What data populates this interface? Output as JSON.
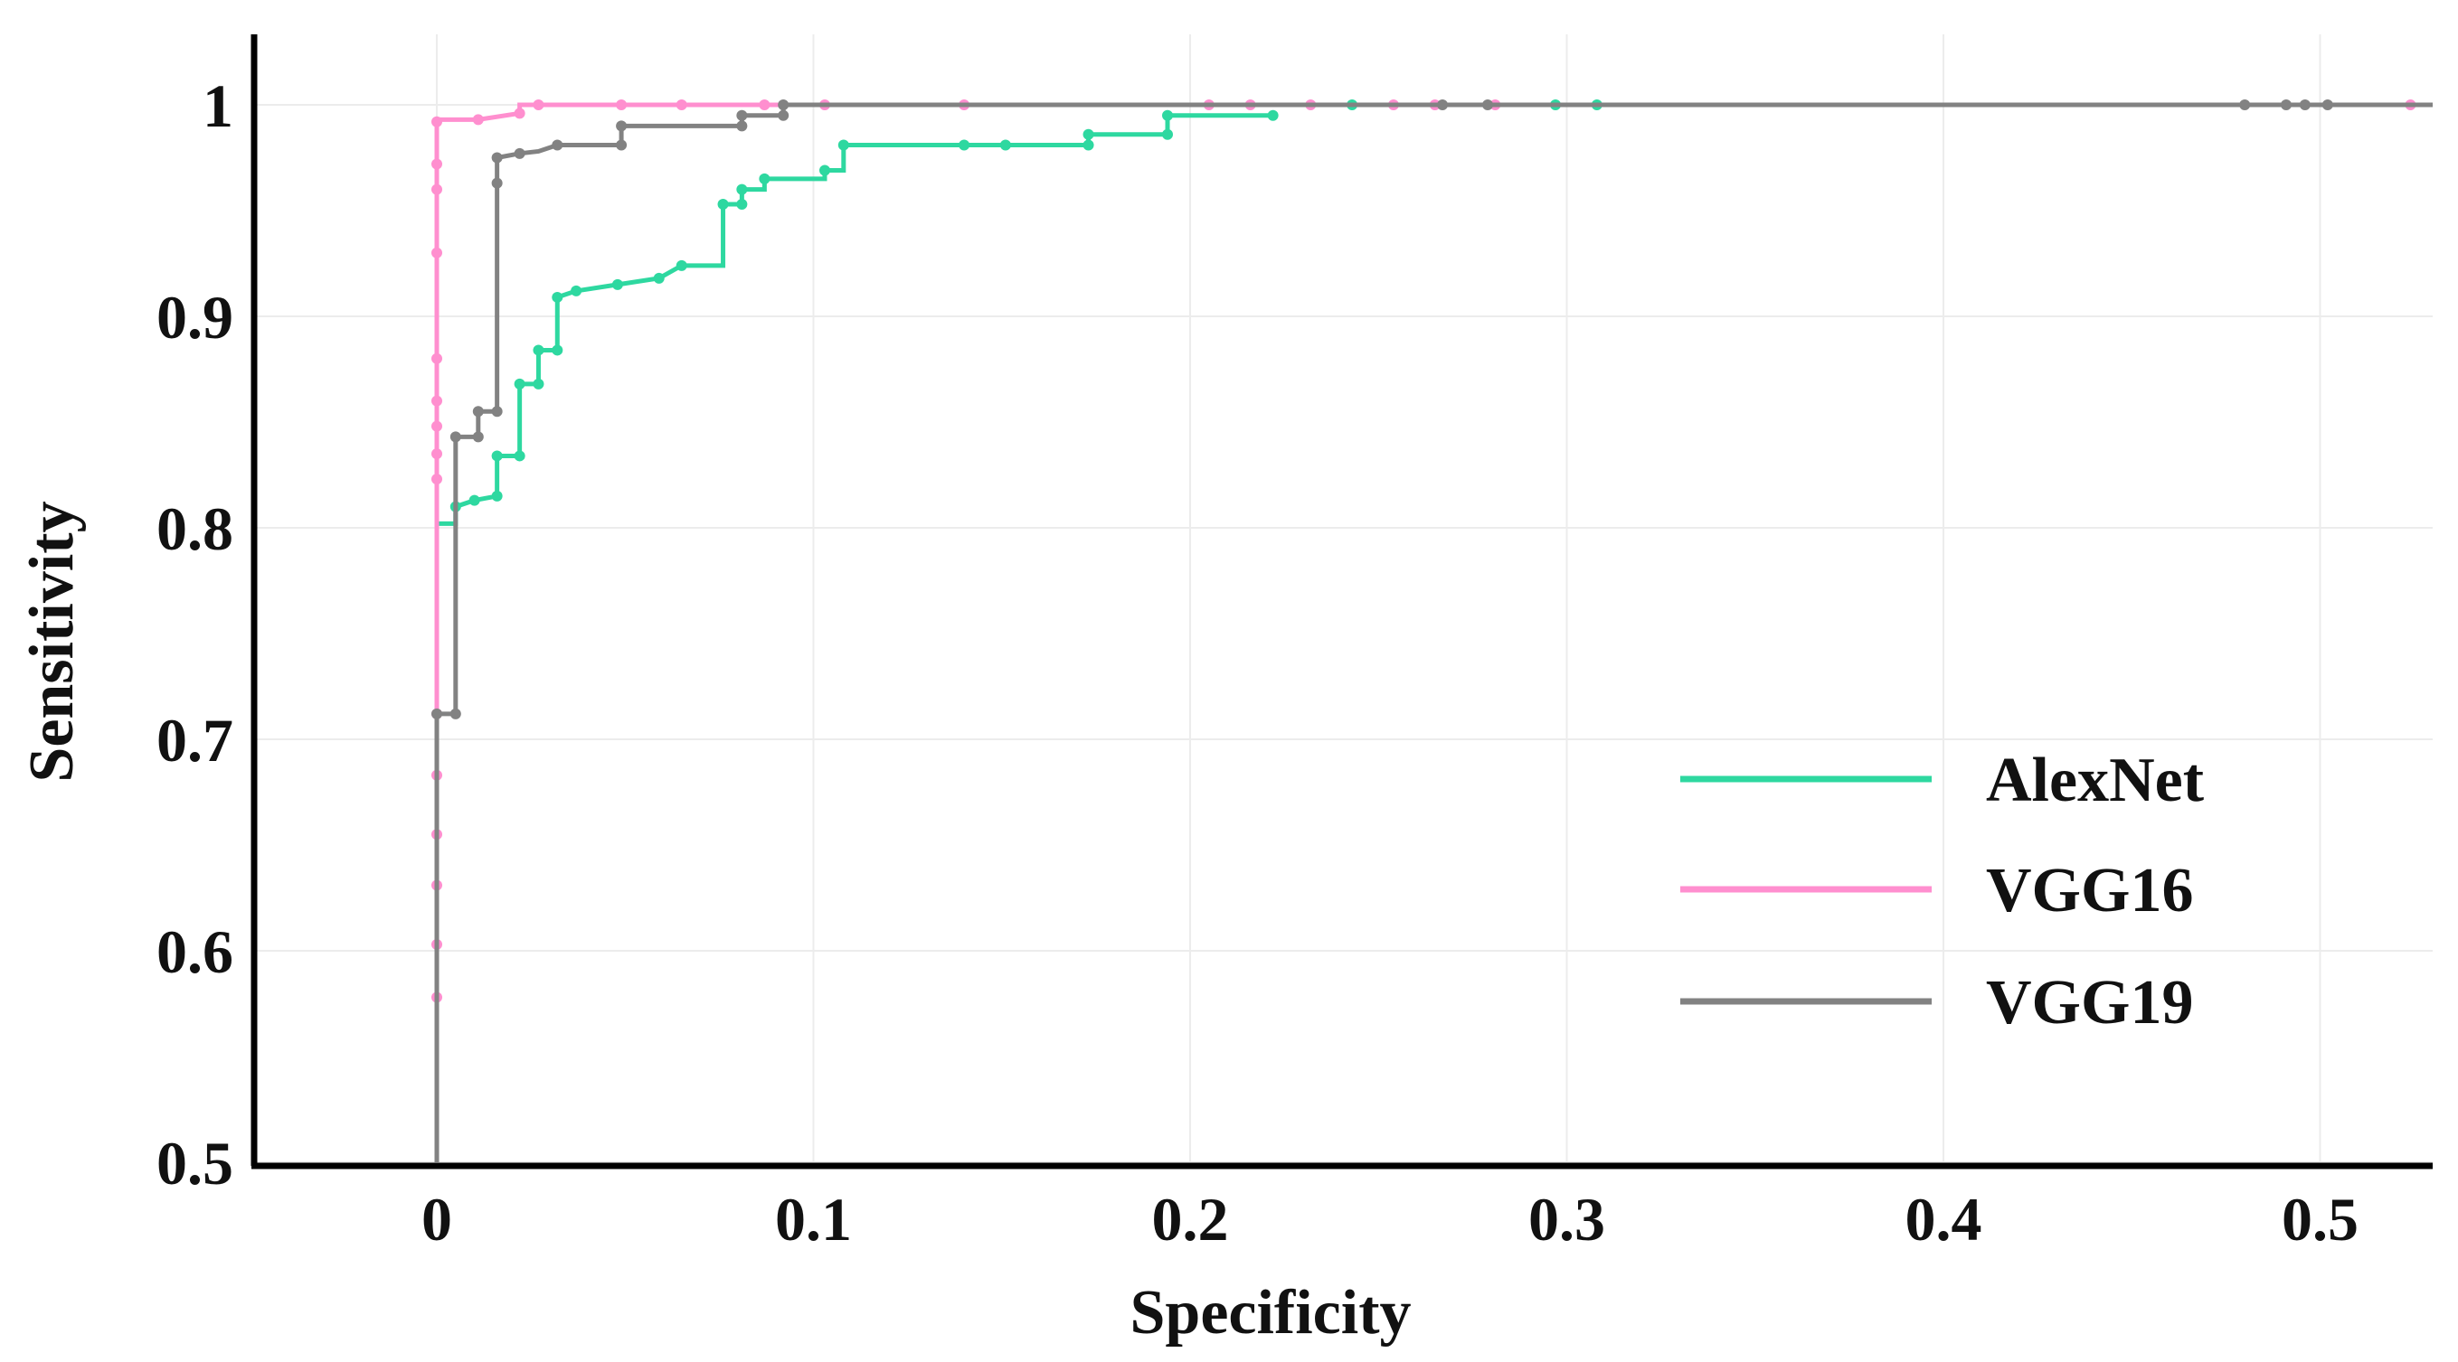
{
  "chart_data": {
    "type": "line",
    "title": "",
    "xlabel": "Specificity",
    "ylabel": "Sensitivity",
    "xlim": [
      -0.05,
      0.53
    ],
    "ylim": [
      0.5,
      1.03
    ],
    "x_ticks": [
      0,
      0.1,
      0.2,
      0.3,
      0.4,
      0.5
    ],
    "x_tick_labels": [
      "0",
      "0.1",
      "0.2",
      "0.3",
      "0.4",
      "0.5"
    ],
    "y_ticks": [
      0.5,
      0.6,
      0.7,
      0.8,
      0.9,
      1.0
    ],
    "y_tick_labels": [
      "0.5",
      "0.6",
      "0.7",
      "0.8",
      "0.9",
      "1"
    ],
    "grid": true,
    "legend_position": "bottom-right",
    "series": [
      {
        "name": "AlexNet",
        "color": "#2ed8a0",
        "x": [
          0.0,
          0.005,
          0.005,
          0.01,
          0.016,
          0.016,
          0.022,
          0.022,
          0.027,
          0.027,
          0.032,
          0.032,
          0.037,
          0.048,
          0.059,
          0.065,
          0.076,
          0.076,
          0.081,
          0.081,
          0.087,
          0.087,
          0.103,
          0.103,
          0.108,
          0.108,
          0.14,
          0.151,
          0.173,
          0.173,
          0.194,
          0.194,
          0.222
        ],
        "y": [
          0.802,
          0.802,
          0.81,
          0.813,
          0.815,
          0.834,
          0.834,
          0.868,
          0.868,
          0.884,
          0.884,
          0.909,
          0.912,
          0.915,
          0.918,
          0.924,
          0.924,
          0.953,
          0.953,
          0.96,
          0.96,
          0.965,
          0.965,
          0.969,
          0.969,
          0.981,
          0.981,
          0.981,
          0.981,
          0.986,
          0.986,
          0.995,
          0.995
        ],
        "markers": [
          [
            0.005,
            0.81
          ],
          [
            0.01,
            0.813
          ],
          [
            0.016,
            0.815
          ],
          [
            0.016,
            0.834
          ],
          [
            0.022,
            0.834
          ],
          [
            0.022,
            0.868
          ],
          [
            0.027,
            0.868
          ],
          [
            0.027,
            0.884
          ],
          [
            0.032,
            0.884
          ],
          [
            0.032,
            0.909
          ],
          [
            0.037,
            0.912
          ],
          [
            0.048,
            0.915
          ],
          [
            0.059,
            0.918
          ],
          [
            0.065,
            0.924
          ],
          [
            0.076,
            0.953
          ],
          [
            0.081,
            0.953
          ],
          [
            0.081,
            0.96
          ],
          [
            0.087,
            0.965
          ],
          [
            0.103,
            0.969
          ],
          [
            0.108,
            0.981
          ],
          [
            0.14,
            0.981
          ],
          [
            0.151,
            0.981
          ],
          [
            0.173,
            0.981
          ],
          [
            0.173,
            0.986
          ],
          [
            0.194,
            0.986
          ],
          [
            0.194,
            0.995
          ],
          [
            0.222,
            0.995
          ],
          [
            0.243,
            1.0
          ],
          [
            0.297,
            1.0
          ],
          [
            0.308,
            1.0
          ]
        ]
      },
      {
        "name": "VGG16",
        "color": "#ff8fcf",
        "x": [
          0.0,
          0.0,
          0.011,
          0.022,
          0.022,
          0.53
        ],
        "y": [
          0.5,
          0.993,
          0.993,
          0.996,
          1.0,
          1.0
        ],
        "markers": [
          [
            0.0,
            0.578
          ],
          [
            0.0,
            0.603
          ],
          [
            0.0,
            0.631
          ],
          [
            0.0,
            0.655
          ],
          [
            0.0,
            0.683
          ],
          [
            0.0,
            0.712
          ],
          [
            0.0,
            0.823
          ],
          [
            0.0,
            0.835
          ],
          [
            0.0,
            0.848
          ],
          [
            0.0,
            0.86
          ],
          [
            0.0,
            0.88
          ],
          [
            0.0,
            0.93
          ],
          [
            0.0,
            0.96
          ],
          [
            0.0,
            0.972
          ],
          [
            0.0,
            0.992
          ],
          [
            0.011,
            0.993
          ],
          [
            0.022,
            0.996
          ],
          [
            0.027,
            1.0
          ],
          [
            0.049,
            1.0
          ],
          [
            0.065,
            1.0
          ],
          [
            0.087,
            1.0
          ],
          [
            0.103,
            1.0
          ],
          [
            0.14,
            1.0
          ],
          [
            0.205,
            1.0
          ],
          [
            0.216,
            1.0
          ],
          [
            0.232,
            1.0
          ],
          [
            0.254,
            1.0
          ],
          [
            0.265,
            1.0
          ],
          [
            0.281,
            1.0
          ],
          [
            0.524,
            1.0
          ]
        ]
      },
      {
        "name": "VGG19",
        "color": "#828282",
        "x": [
          0.0,
          0.0,
          0.005,
          0.005,
          0.011,
          0.011,
          0.016,
          0.016,
          0.022,
          0.027,
          0.032,
          0.049,
          0.049,
          0.081,
          0.081,
          0.092,
          0.092,
          0.53
        ],
        "y": [
          0.5,
          0.712,
          0.712,
          0.843,
          0.843,
          0.855,
          0.855,
          0.975,
          0.977,
          0.978,
          0.981,
          0.981,
          0.99,
          0.99,
          0.995,
          0.995,
          1.0,
          1.0
        ],
        "markers": [
          [
            0.0,
            0.712
          ],
          [
            0.005,
            0.712
          ],
          [
            0.005,
            0.843
          ],
          [
            0.011,
            0.843
          ],
          [
            0.011,
            0.855
          ],
          [
            0.016,
            0.855
          ],
          [
            0.016,
            0.963
          ],
          [
            0.016,
            0.975
          ],
          [
            0.022,
            0.977
          ],
          [
            0.032,
            0.981
          ],
          [
            0.049,
            0.981
          ],
          [
            0.049,
            0.99
          ],
          [
            0.081,
            0.99
          ],
          [
            0.081,
            0.995
          ],
          [
            0.092,
            0.995
          ],
          [
            0.092,
            1.0
          ],
          [
            0.267,
            1.0
          ],
          [
            0.279,
            1.0
          ],
          [
            0.48,
            1.0
          ],
          [
            0.491,
            1.0
          ],
          [
            0.496,
            1.0
          ],
          [
            0.502,
            1.0
          ]
        ]
      }
    ]
  }
}
